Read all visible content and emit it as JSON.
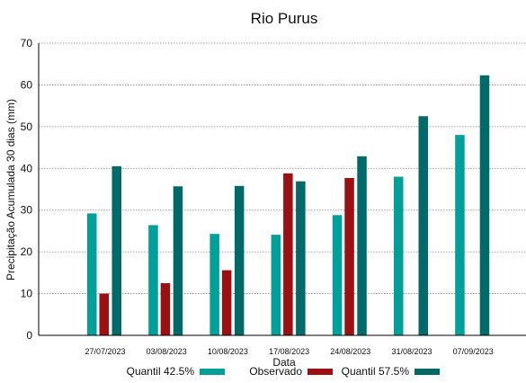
{
  "chart_data": {
    "type": "bar",
    "title": "Rio Purus",
    "xlabel": "Data",
    "ylabel": "Precipitação Acumulada 30 dias (mm)",
    "ylim": [
      0,
      70
    ],
    "yticks": [
      0,
      10,
      20,
      30,
      40,
      50,
      60,
      70
    ],
    "grid": true,
    "legend_position": "bottom",
    "categories": [
      "27/07/2023",
      "03/08/2023",
      "10/08/2023",
      "17/08/2023",
      "24/08/2023",
      "31/08/2023",
      "07/09/2023"
    ],
    "series": [
      {
        "name": "Quantil 42.5%",
        "color": "#00a09a",
        "values": [
          29.2,
          26.4,
          24.3,
          24.1,
          28.8,
          38.0,
          48.0
        ]
      },
      {
        "name": "Observado",
        "color": "#9b1010",
        "values": [
          10.0,
          12.5,
          15.6,
          38.8,
          37.7,
          null,
          null
        ]
      },
      {
        "name": "Quantil 57.5%",
        "color": "#006a68",
        "values": [
          40.5,
          35.7,
          35.8,
          36.9,
          42.9,
          52.5,
          62.3
        ]
      }
    ]
  }
}
